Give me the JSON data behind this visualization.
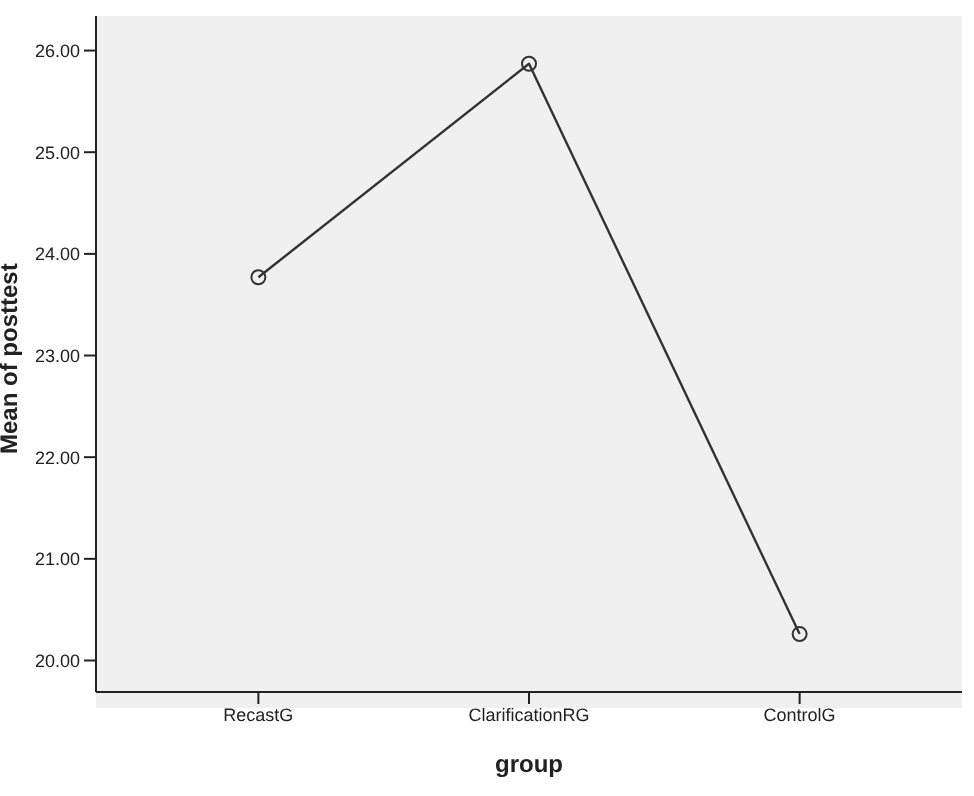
{
  "chart_data": {
    "type": "line",
    "xlabel": "group",
    "ylabel": "Mean of posttest",
    "categories": [
      "RecastG",
      "ClarificationRG",
      "ControlG"
    ],
    "series": [
      {
        "color": "#333333",
        "values": [
          23.77,
          25.87,
          20.26
        ]
      }
    ],
    "ylim": [
      19.69,
      26.34
    ],
    "yticks": [
      {
        "value": 20,
        "label": "20.00"
      },
      {
        "value": 21,
        "label": "21.00"
      },
      {
        "value": 22,
        "label": "22.00"
      },
      {
        "value": 23,
        "label": "23.00"
      },
      {
        "value": 24,
        "label": "24.00"
      },
      {
        "value": 25,
        "label": "25.00"
      },
      {
        "value": 26,
        "label": "26.00"
      }
    ],
    "grid": false,
    "legend": false,
    "marker": "circle",
    "line_style": "solid"
  }
}
